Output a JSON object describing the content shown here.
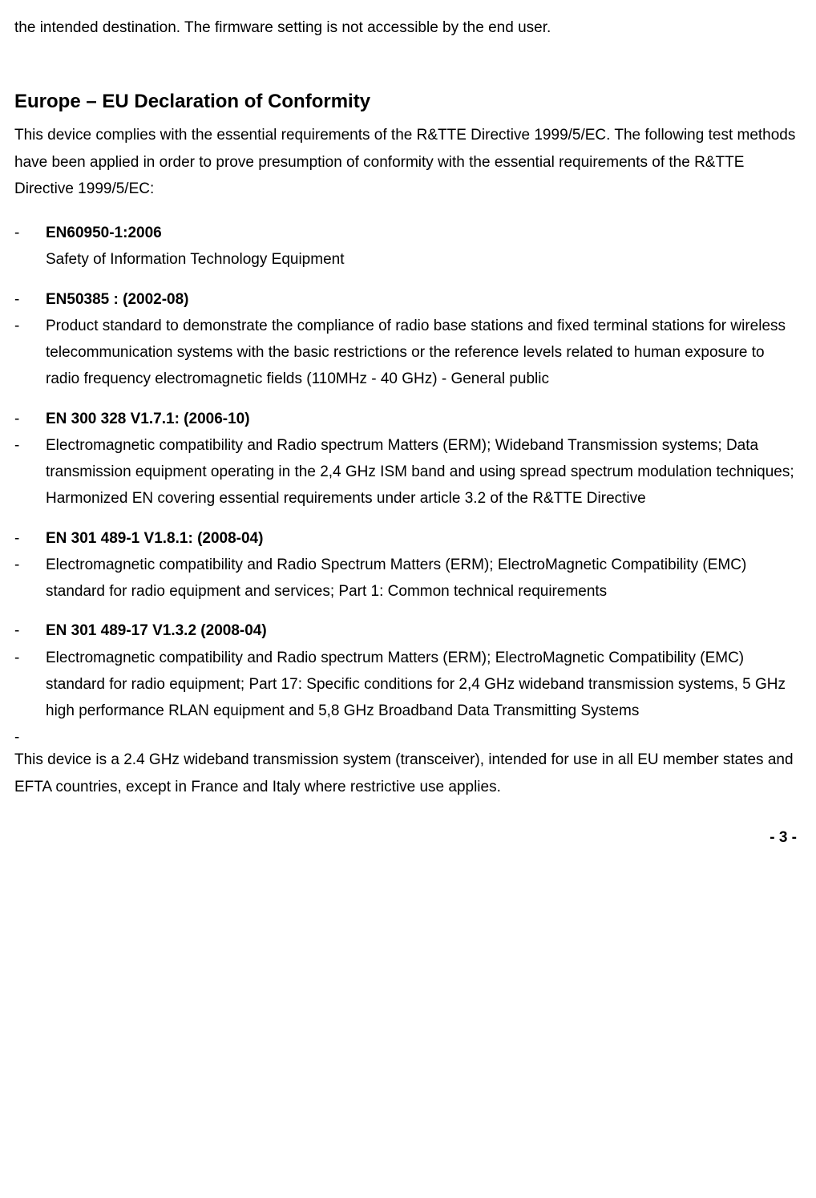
{
  "introFragment": "the intended destination. The firmware setting is not accessible by the end user.",
  "heading": "Europe – EU Declaration of Conformity",
  "leadPara": "This device complies with the essential requirements of the R&TTE Directive 1999/5/EC. The following test methods have been applied in order to prove presumption of conformity with the essential requirements of the R&TTE Directive 1999/5/EC:",
  "items": [
    {
      "title": "EN60950-1:2006",
      "desc": "Safety of Information Technology Equipment",
      "descStyle": "inline"
    },
    {
      "title": "EN50385 : (2002-08)",
      "desc": "Product standard to demonstrate the compliance of radio base stations and fixed terminal stations for wireless telecommunication systems with the basic restrictions or the reference levels related to human exposure to radio frequency electromagnetic fields (110MHz - 40 GHz) - General public",
      "descStyle": "dash"
    },
    {
      "title": "EN 300 328 V1.7.1: (2006-10)",
      "desc": "Electromagnetic compatibility and Radio spectrum Matters (ERM); Wideband Transmission systems; Data transmission equipment operating in the 2,4 GHz ISM band and using spread spectrum modulation techniques; Harmonized EN covering essential requirements under article 3.2 of the R&TTE Directive",
      "descStyle": "dash"
    },
    {
      "title": "EN 301 489-1 V1.8.1: (2008-04)",
      "desc": "Electromagnetic compatibility and Radio Spectrum Matters (ERM); ElectroMagnetic Compatibility (EMC) standard for radio equipment and services; Part 1: Common technical requirements",
      "descStyle": "dash"
    },
    {
      "title": "EN 301 489-17 V1.3.2 (2008-04)",
      "desc": "Electromagnetic compatibility and Radio spectrum Matters (ERM); ElectroMagnetic Compatibility (EMC) standard for radio equipment; Part 17: Specific conditions for 2,4 GHz wideband transmission systems, 5 GHz high performance RLAN equipment and 5,8 GHz Broadband Data Transmitting Systems",
      "descStyle": "dash",
      "noBottomMargin": true
    }
  ],
  "trailingDash": "-",
  "closing": "This device is a 2.4 GHz wideband transmission system (transceiver), intended for use in all EU member states and EFTA countries, except in France and Italy where restrictive use applies.",
  "pageNumber": "- 3 -"
}
